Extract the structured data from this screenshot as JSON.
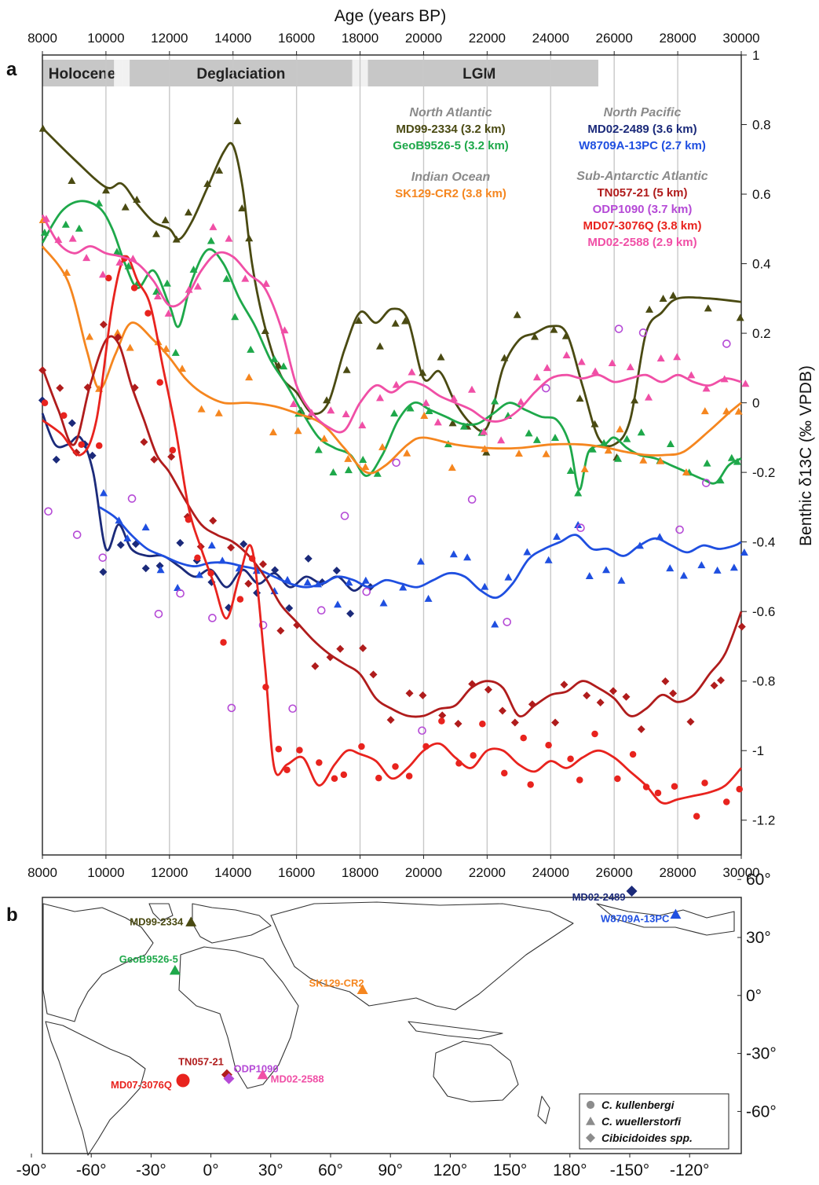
{
  "panel_a_letter": "a",
  "panel_b_letter": "b",
  "periods": [
    {
      "name": "Holocene",
      "start": 8000,
      "end": 10500
    },
    {
      "name": "Deglaciation",
      "start": 10500,
      "end": 18000
    },
    {
      "name": "LGM",
      "start": 18000,
      "end": 25500
    }
  ],
  "legend": [
    {
      "heading": "North Atlantic",
      "entries": [
        {
          "label": "MD99-2334 (3.2 km)",
          "color": "#4a4a12"
        },
        {
          "label": "GeoB9526-5 (3.2 km)",
          "color": "#1ea84a"
        }
      ]
    },
    {
      "heading": "Indian Ocean",
      "entries": [
        {
          "label": "SK129-CR2 (3.8 km)",
          "color": "#f5861f"
        }
      ]
    },
    {
      "heading": "North Pacific",
      "entries": [
        {
          "label": "MD02-2489 (3.6 km)",
          "color": "#1b2a7a"
        },
        {
          "label": "W8709A-13PC (2.7 km)",
          "color": "#1f4fe0"
        }
      ]
    },
    {
      "heading": "Sub-Antarctic Atlantic",
      "entries": [
        {
          "label": "TN057-21 (5 km)",
          "color": "#b01c1c"
        },
        {
          "label": "ODP1090 (3.7 km)",
          "color": "#b54ad6"
        },
        {
          "label": "MD07-3076Q (3.8 km)",
          "color": "#e8231e"
        },
        {
          "label": "MD02-2588 (2.9 km)",
          "color": "#f04fa6"
        }
      ]
    }
  ],
  "chart_data": [
    {
      "type": "line",
      "xlabel": "Age (years BP)",
      "ylabel": "Benthic δ13C (‰ VPDB)",
      "xlim": [
        8000,
        30000
      ],
      "ylim": [
        -1.3,
        1.0
      ],
      "xticks": [
        8000,
        10000,
        12000,
        14000,
        16000,
        18000,
        20000,
        22000,
        24000,
        26000,
        28000,
        30000
      ],
      "yticks": [
        1,
        0.8,
        0.6,
        0.4,
        0.2,
        0,
        -0.2,
        -0.4,
        -0.6,
        -0.8,
        -1,
        -1.2
      ],
      "vertical_gridlines": [
        10000,
        12000,
        14000,
        16000,
        18000,
        20000,
        22000,
        24000,
        26000,
        28000
      ],
      "series": [
        {
          "name": "MD99-2334 (3.2 km)",
          "color": "#4a4a12",
          "marker": "triangle",
          "x": [
            8000,
            9000,
            10000,
            10500,
            11000,
            11500,
            12000,
            12300,
            12700,
            13200,
            13700,
            14000,
            14300,
            14600,
            15000,
            15500,
            16000,
            16500,
            17000,
            17500,
            18000,
            18500,
            19000,
            19500,
            20000,
            20500,
            21000,
            21500,
            22000,
            22500,
            23000,
            23500,
            24000,
            24500,
            25000,
            25500,
            26000,
            26500,
            27000,
            27500,
            28000,
            29000,
            30000
          ],
          "y": [
            0.79,
            0.7,
            0.62,
            0.63,
            0.57,
            0.52,
            0.5,
            0.47,
            0.52,
            0.62,
            0.72,
            0.74,
            0.62,
            0.4,
            0.22,
            0.08,
            0.03,
            -0.03,
            0.0,
            0.15,
            0.26,
            0.23,
            0.27,
            0.24,
            0.07,
            0.09,
            0.0,
            -0.06,
            -0.07,
            0.1,
            0.18,
            0.2,
            0.22,
            0.2,
            0.05,
            -0.1,
            -0.12,
            -0.05,
            0.2,
            0.26,
            0.3,
            0.3,
            0.29
          ]
        },
        {
          "name": "GeoB9526-5 (3.2 km)",
          "color": "#1ea84a",
          "marker": "triangle",
          "x": [
            8000,
            8600,
            9200,
            9800,
            10200,
            10600,
            11000,
            11500,
            12000,
            12300,
            12700,
            13200,
            13700,
            14200,
            14700,
            15200,
            15700,
            16200,
            16700,
            17200,
            17700,
            18200,
            18700,
            19200,
            19700,
            20200,
            20700,
            21200,
            21700,
            22200,
            22700,
            23200,
            23700,
            24200,
            24600,
            24900,
            25200,
            25700,
            26000,
            26400,
            26800,
            27300,
            27800,
            28300,
            28800,
            29200,
            29600,
            30000
          ],
          "y": [
            0.46,
            0.55,
            0.58,
            0.56,
            0.5,
            0.4,
            0.33,
            0.38,
            0.28,
            0.22,
            0.35,
            0.44,
            0.4,
            0.3,
            0.22,
            0.12,
            0.05,
            -0.03,
            -0.1,
            -0.13,
            -0.15,
            -0.21,
            -0.15,
            -0.05,
            0.0,
            -0.02,
            -0.04,
            -0.06,
            -0.06,
            -0.03,
            0.0,
            -0.02,
            -0.04,
            -0.05,
            -0.12,
            -0.25,
            -0.14,
            -0.12,
            -0.1,
            -0.13,
            -0.15,
            -0.16,
            -0.18,
            -0.2,
            -0.22,
            -0.23,
            -0.18,
            -0.16
          ]
        },
        {
          "name": "SK129-CR2 (3.8 km)",
          "color": "#f5861f",
          "marker": "triangle",
          "x": [
            8000,
            8800,
            9400,
            9800,
            10300,
            10800,
            11500,
            12000,
            12500,
            13000,
            13700,
            14500,
            15300,
            16000,
            16800,
            17500,
            18200,
            18800,
            19500,
            20000,
            21000,
            22000,
            23000,
            24000,
            25000,
            25800,
            26300,
            27000,
            27600,
            28200,
            29000,
            29600,
            30000
          ],
          "y": [
            0.45,
            0.35,
            0.15,
            0.04,
            0.14,
            0.23,
            0.18,
            0.13,
            0.07,
            0.03,
            0.0,
            0.0,
            -0.01,
            -0.03,
            -0.06,
            -0.13,
            -0.2,
            -0.18,
            -0.12,
            -0.1,
            -0.12,
            -0.13,
            -0.13,
            -0.12,
            -0.12,
            -0.13,
            -0.14,
            -0.15,
            -0.15,
            -0.14,
            -0.08,
            -0.03,
            0.0
          ]
        },
        {
          "name": "MD02-2489 (3.6 km)",
          "color": "#1b2a7a",
          "marker": "diamond",
          "x": [
            8000,
            8400,
            8800,
            9200,
            9600,
            10000,
            10400,
            10800,
            11300,
            11800,
            12300,
            12800,
            13300,
            13800,
            14300,
            14800,
            15300,
            15800,
            16300,
            16800,
            17300,
            17800,
            18200
          ],
          "y": [
            -0.03,
            -0.12,
            -0.12,
            -0.1,
            -0.2,
            -0.42,
            -0.35,
            -0.42,
            -0.44,
            -0.44,
            -0.47,
            -0.5,
            -0.48,
            -0.53,
            -0.48,
            -0.52,
            -0.49,
            -0.53,
            -0.5,
            -0.52,
            -0.5,
            -0.54,
            -0.51
          ]
        },
        {
          "name": "W8709A-13PC (2.7 km)",
          "color": "#1f4fe0",
          "marker": "triangle",
          "x": [
            9800,
            10300,
            10800,
            11300,
            11800,
            12300,
            12800,
            13300,
            13800,
            14300,
            14800,
            15300,
            15800,
            16300,
            16800,
            17300,
            17800,
            18300,
            18800,
            19300,
            19800,
            20300,
            20800,
            21300,
            21800,
            22300,
            22800,
            23300,
            23800,
            24300,
            24800,
            25300,
            25800,
            26300,
            26800,
            27300,
            27800,
            28300,
            28800,
            29300,
            29800,
            30000
          ],
          "y": [
            -0.3,
            -0.33,
            -0.38,
            -0.42,
            -0.44,
            -0.46,
            -0.47,
            -0.46,
            -0.46,
            -0.47,
            -0.48,
            -0.5,
            -0.52,
            -0.53,
            -0.52,
            -0.5,
            -0.51,
            -0.53,
            -0.51,
            -0.52,
            -0.53,
            -0.51,
            -0.49,
            -0.5,
            -0.54,
            -0.56,
            -0.52,
            -0.45,
            -0.42,
            -0.4,
            -0.38,
            -0.42,
            -0.42,
            -0.44,
            -0.41,
            -0.39,
            -0.41,
            -0.43,
            -0.41,
            -0.42,
            -0.41,
            -0.4
          ]
        },
        {
          "name": "TN057-21 (5 km)",
          "color": "#b01c1c",
          "marker": "diamond",
          "x": [
            8000,
            8500,
            9000,
            9500,
            10000,
            10400,
            10800,
            11200,
            11600,
            12000,
            12500,
            13000,
            13500,
            14000,
            14500,
            15000,
            15500,
            16000,
            16500,
            17000,
            17500,
            18000,
            18500,
            19000,
            19500,
            20000,
            20500,
            21000,
            21500,
            22000,
            22500,
            23000,
            23500,
            24000,
            24500,
            25000,
            25500,
            26000,
            26500,
            27000,
            27500,
            28000,
            28500,
            29000,
            29500,
            30000
          ],
          "y": [
            0.1,
            -0.02,
            -0.12,
            0.05,
            0.18,
            0.17,
            0.05,
            -0.05,
            -0.15,
            -0.2,
            -0.28,
            -0.35,
            -0.38,
            -0.4,
            -0.44,
            -0.5,
            -0.58,
            -0.63,
            -0.68,
            -0.72,
            -0.75,
            -0.78,
            -0.85,
            -0.88,
            -0.9,
            -0.9,
            -0.88,
            -0.87,
            -0.82,
            -0.8,
            -0.82,
            -0.9,
            -0.87,
            -0.84,
            -0.83,
            -0.8,
            -0.82,
            -0.85,
            -0.9,
            -0.88,
            -0.84,
            -0.86,
            -0.84,
            -0.78,
            -0.72,
            -0.6
          ]
        },
        {
          "name": "ODP1090 (3.7 km)",
          "color": "#b54ad6",
          "marker": "circle-open",
          "x": [
            8300,
            9100,
            9900,
            10800,
            11600,
            12400,
            13300,
            14100,
            15000,
            15800,
            16700,
            17400,
            18300,
            19200,
            20000,
            21600,
            22500,
            24000,
            25000,
            26000,
            27000,
            28000,
            28800,
            29600
          ],
          "y": [
            -0.33,
            -0.34,
            -0.38,
            -0.2,
            -0.64,
            -0.62,
            -0.68,
            -0.91,
            -0.58,
            -0.88,
            -0.61,
            -0.4,
            -0.5,
            -0.2,
            -0.99,
            -0.26,
            -0.6,
            -0.03,
            -0.33,
            0.16,
            0.16,
            -0.34,
            -0.24,
            0.16
          ]
        },
        {
          "name": "MD07-3076Q (3.8 km)",
          "color": "#e8231e",
          "marker": "circle",
          "x": [
            8000,
            8600,
            9200,
            9700,
            10200,
            10600,
            11000,
            11400,
            11800,
            12200,
            12600,
            13000,
            13400,
            13800,
            14200,
            14600,
            15000,
            15300,
            15700,
            16200,
            16700,
            17200,
            17600,
            18000,
            18500,
            19000,
            19500,
            20000,
            20500,
            21000,
            21500,
            22000,
            22500,
            23000,
            23500,
            24000,
            24500,
            25000,
            25500,
            26000,
            26500,
            27000,
            27500,
            28000,
            28500,
            29000,
            29500,
            30000
          ],
          "y": [
            -0.05,
            -0.09,
            -0.15,
            -0.05,
            0.28,
            0.42,
            0.35,
            0.28,
            0.1,
            -0.08,
            -0.3,
            -0.42,
            -0.52,
            -0.62,
            -0.5,
            -0.42,
            -0.75,
            -1.05,
            -1.04,
            -1.02,
            -1.1,
            -1.04,
            -1.0,
            -1.01,
            -1.03,
            -1.08,
            -1.05,
            -1.0,
            -0.98,
            -1.02,
            -1.05,
            -1.0,
            -1.0,
            -1.04,
            -1.06,
            -1.03,
            -1.05,
            -1.02,
            -1.0,
            -1.02,
            -1.06,
            -1.1,
            -1.15,
            -1.14,
            -1.13,
            -1.12,
            -1.1,
            -1.05
          ]
        },
        {
          "name": "MD02-2588 (2.9 km)",
          "color": "#f04fa6",
          "marker": "triangle",
          "x": [
            8000,
            8500,
            9000,
            9500,
            10000,
            10500,
            11000,
            11500,
            12000,
            12500,
            13000,
            13500,
            14000,
            14500,
            15000,
            15500,
            16000,
            16500,
            17000,
            17500,
            18000,
            18500,
            19000,
            19500,
            20000,
            20500,
            21000,
            21500,
            22000,
            22500,
            23000,
            23500,
            24000,
            24500,
            25000,
            25500,
            26000,
            26500,
            27000,
            27500,
            28000,
            28500,
            29000,
            29500,
            30000
          ],
          "y": [
            0.54,
            0.46,
            0.43,
            0.45,
            0.43,
            0.42,
            0.4,
            0.35,
            0.28,
            0.3,
            0.38,
            0.43,
            0.42,
            0.37,
            0.33,
            0.22,
            0.05,
            -0.03,
            -0.07,
            -0.08,
            0.0,
            0.05,
            0.03,
            0.06,
            0.05,
            0.02,
            0.0,
            -0.02,
            -0.05,
            -0.05,
            -0.02,
            0.03,
            0.07,
            0.08,
            0.07,
            0.08,
            0.06,
            0.07,
            0.08,
            0.06,
            0.08,
            0.06,
            0.05,
            0.07,
            0.06
          ]
        }
      ]
    },
    {
      "type": "map",
      "xlim": [
        -90,
        270
      ],
      "ylim": [
        -60,
        60
      ],
      "xticks": [
        -90,
        -60,
        -30,
        0,
        30,
        60,
        90,
        120,
        150,
        180,
        -150,
        -120
      ],
      "yticks": [
        60,
        30,
        0,
        -30,
        -60
      ],
      "sites": [
        {
          "name": "MD99-2334",
          "lon": -10,
          "lat": 38,
          "marker": "triangle",
          "color": "#4a4a12"
        },
        {
          "name": "GeoB9526-5",
          "lon": -18,
          "lat": 13,
          "marker": "triangle",
          "color": "#1ea84a"
        },
        {
          "name": "SK129-CR2",
          "lon": 76,
          "lat": 3,
          "marker": "triangle",
          "color": "#f5861f"
        },
        {
          "name": "MD02-2489",
          "lon": 211,
          "lat": 54,
          "marker": "diamond",
          "color": "#1b2a7a"
        },
        {
          "name": "W8709A-13PC",
          "lon": 233,
          "lat": 42,
          "marker": "triangle",
          "color": "#1f4fe0"
        },
        {
          "name": "TN057-21",
          "lon": 8,
          "lat": -41,
          "marker": "diamond",
          "color": "#b01c1c"
        },
        {
          "name": "ODP1090",
          "lon": 9,
          "lat": -43,
          "marker": "diamond",
          "color": "#b54ad6"
        },
        {
          "name": "MD07-3076Q",
          "lon": -14,
          "lat": -44,
          "marker": "circle",
          "color": "#e8231e"
        },
        {
          "name": "MD02-2588",
          "lon": 26,
          "lat": -41,
          "marker": "triangle",
          "color": "#f04fa6"
        }
      ],
      "marker_key": [
        {
          "label": "C. kullenbergi",
          "marker": "circle"
        },
        {
          "label": "C. wuellerstorfi",
          "marker": "triangle"
        },
        {
          "label": "Cibicidoides spp.",
          "marker": "diamond"
        }
      ]
    }
  ]
}
